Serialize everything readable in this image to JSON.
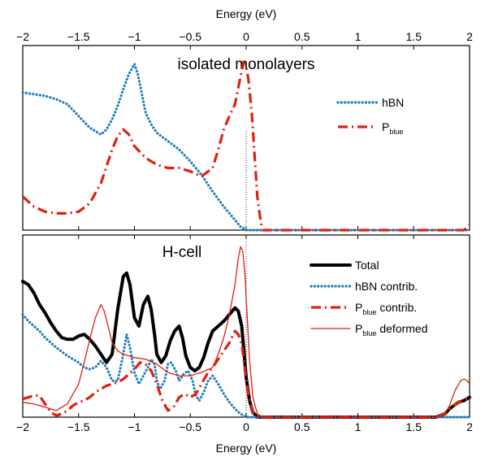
{
  "chart_data": [
    {
      "type": "line",
      "title": "isolated monolayers",
      "xlabel": "Energy (eV)",
      "ylabel": "",
      "xlim": [
        -2,
        2
      ],
      "ylim": [
        0,
        1.1
      ],
      "xticks": [
        "-2",
        "-1.5",
        "-1",
        "-0.5",
        "0",
        "0.5",
        "1",
        "1.5",
        "2"
      ],
      "fermi_level": 0,
      "legend_position": "top-right",
      "series": [
        {
          "name": "hBN",
          "subscript": "",
          "color": "#1f7fbf",
          "style": "dotted",
          "x": [
            -2.0,
            -1.9,
            -1.8,
            -1.7,
            -1.6,
            -1.5,
            -1.4,
            -1.3,
            -1.25,
            -1.2,
            -1.15,
            -1.1,
            -1.05,
            -1.0,
            -0.97,
            -0.93,
            -0.9,
            -0.85,
            -0.8,
            -0.7,
            -0.6,
            -0.5,
            -0.4,
            -0.3,
            -0.2,
            -0.1,
            -0.05,
            0.0,
            0.05,
            0.1,
            0.5,
            1.0,
            1.5,
            2.0
          ],
          "y": [
            0.82,
            0.81,
            0.8,
            0.78,
            0.75,
            0.68,
            0.61,
            0.57,
            0.6,
            0.66,
            0.74,
            0.84,
            0.93,
            0.99,
            0.93,
            0.8,
            0.7,
            0.63,
            0.58,
            0.53,
            0.48,
            0.41,
            0.33,
            0.23,
            0.14,
            0.06,
            0.02,
            0.0,
            0.0,
            0.0,
            0.0,
            0.0,
            0.0,
            0.0
          ]
        },
        {
          "name": "P",
          "subscript": "blue",
          "color": "#e02010",
          "style": "dashdot",
          "x": [
            -2.0,
            -1.9,
            -1.8,
            -1.7,
            -1.6,
            -1.5,
            -1.4,
            -1.3,
            -1.25,
            -1.2,
            -1.15,
            -1.1,
            -1.05,
            -1.0,
            -0.9,
            -0.8,
            -0.7,
            -0.6,
            -0.5,
            -0.4,
            -0.3,
            -0.25,
            -0.2,
            -0.15,
            -0.1,
            -0.07,
            -0.04,
            -0.02,
            0.0,
            0.02,
            0.05,
            0.08,
            0.1,
            0.13,
            0.15,
            0.2,
            0.5,
            1.0,
            1.5,
            1.95,
            2.0
          ],
          "y": [
            0.2,
            0.14,
            0.11,
            0.1,
            0.1,
            0.11,
            0.16,
            0.28,
            0.38,
            0.48,
            0.56,
            0.6,
            0.57,
            0.5,
            0.43,
            0.39,
            0.37,
            0.37,
            0.35,
            0.32,
            0.37,
            0.48,
            0.6,
            0.68,
            0.75,
            0.85,
            0.95,
            1.0,
            0.98,
            0.9,
            0.7,
            0.4,
            0.2,
            0.05,
            0.0,
            0.0,
            0.0,
            0.0,
            0.0,
            0.0,
            0.03
          ]
        }
      ]
    },
    {
      "type": "line",
      "title": "H-cell",
      "xlabel": "Energy (eV)",
      "ylabel": "",
      "xlim": [
        -2,
        2
      ],
      "ylim": [
        0,
        1.1
      ],
      "xticks": [
        "-2",
        "-1.5",
        "-1",
        "-0.5",
        "0",
        "0.5",
        "1",
        "1.5",
        "2"
      ],
      "fermi_level": 0,
      "legend_position": "top-right",
      "series": [
        {
          "name": "Total",
          "subscript": "",
          "suffix": "",
          "color": "#000000",
          "style": "solid-thick",
          "x": [
            -2.0,
            -1.95,
            -1.9,
            -1.85,
            -1.8,
            -1.75,
            -1.7,
            -1.65,
            -1.6,
            -1.55,
            -1.5,
            -1.45,
            -1.4,
            -1.35,
            -1.3,
            -1.25,
            -1.2,
            -1.15,
            -1.1,
            -1.07,
            -1.04,
            -1.0,
            -0.96,
            -0.92,
            -0.88,
            -0.85,
            -0.82,
            -0.8,
            -0.76,
            -0.72,
            -0.68,
            -0.64,
            -0.6,
            -0.57,
            -0.54,
            -0.5,
            -0.46,
            -0.42,
            -0.38,
            -0.34,
            -0.3,
            -0.25,
            -0.2,
            -0.15,
            -0.1,
            -0.07,
            -0.04,
            -0.02,
            0.0,
            0.03,
            0.06,
            0.1,
            0.15,
            0.3,
            0.6,
            1.0,
            1.4,
            1.6,
            1.7,
            1.78,
            1.82,
            1.9,
            1.95,
            2.0
          ],
          "y": [
            0.82,
            0.8,
            0.75,
            0.68,
            0.63,
            0.57,
            0.52,
            0.48,
            0.47,
            0.47,
            0.49,
            0.5,
            0.47,
            0.43,
            0.38,
            0.33,
            0.38,
            0.65,
            0.85,
            0.87,
            0.8,
            0.6,
            0.55,
            0.68,
            0.73,
            0.65,
            0.5,
            0.38,
            0.33,
            0.37,
            0.46,
            0.52,
            0.55,
            0.48,
            0.37,
            0.3,
            0.28,
            0.3,
            0.36,
            0.45,
            0.52,
            0.55,
            0.58,
            0.62,
            0.66,
            0.64,
            0.55,
            0.4,
            0.24,
            0.1,
            0.03,
            0.0,
            0.0,
            0.0,
            0.0,
            0.0,
            0.0,
            0.0,
            0.0,
            0.02,
            0.05,
            0.09,
            0.1,
            0.12
          ]
        },
        {
          "name": "hBN",
          "subscript": "",
          "suffix": "contrib.",
          "color": "#1f7fbf",
          "style": "dotted",
          "x": [
            -2.0,
            -1.95,
            -1.9,
            -1.85,
            -1.8,
            -1.7,
            -1.6,
            -1.5,
            -1.45,
            -1.4,
            -1.35,
            -1.3,
            -1.25,
            -1.2,
            -1.15,
            -1.1,
            -1.07,
            -1.04,
            -1.0,
            -0.96,
            -0.92,
            -0.88,
            -0.85,
            -0.82,
            -0.8,
            -0.77,
            -0.73,
            -0.7,
            -0.67,
            -0.63,
            -0.6,
            -0.56,
            -0.52,
            -0.48,
            -0.45,
            -0.42,
            -0.38,
            -0.34,
            -0.3,
            -0.25,
            -0.2,
            -0.15,
            -0.1,
            -0.05,
            0.0,
            0.05,
            0.1,
            0.5,
            1.0,
            1.5,
            2.0
          ],
          "y": [
            0.62,
            0.58,
            0.55,
            0.52,
            0.48,
            0.42,
            0.37,
            0.33,
            0.3,
            0.29,
            0.3,
            0.34,
            0.3,
            0.22,
            0.22,
            0.38,
            0.5,
            0.42,
            0.27,
            0.2,
            0.25,
            0.3,
            0.35,
            0.32,
            0.22,
            0.17,
            0.22,
            0.32,
            0.33,
            0.28,
            0.22,
            0.26,
            0.28,
            0.22,
            0.13,
            0.1,
            0.15,
            0.22,
            0.25,
            0.2,
            0.14,
            0.09,
            0.05,
            0.02,
            0.0,
            0.0,
            0.0,
            0.0,
            0.0,
            0.0,
            0.0
          ]
        },
        {
          "name": "P",
          "subscript": "blue",
          "suffix": "contrib.",
          "color": "#e02010",
          "style": "dashdot",
          "x": [
            -2.0,
            -1.95,
            -1.9,
            -1.85,
            -1.8,
            -1.75,
            -1.7,
            -1.65,
            -1.6,
            -1.55,
            -1.5,
            -1.45,
            -1.4,
            -1.35,
            -1.3,
            -1.25,
            -1.2,
            -1.15,
            -1.1,
            -1.05,
            -1.0,
            -0.95,
            -0.9,
            -0.85,
            -0.8,
            -0.75,
            -0.7,
            -0.65,
            -0.6,
            -0.55,
            -0.5,
            -0.45,
            -0.4,
            -0.35,
            -0.3,
            -0.25,
            -0.2,
            -0.15,
            -0.1,
            -0.07,
            -0.04,
            -0.02,
            0.0,
            0.03,
            0.06,
            0.1,
            0.15,
            0.3,
            0.6,
            1.0,
            1.4,
            1.6,
            1.7,
            1.78,
            1.82,
            1.9,
            1.95,
            2.0
          ],
          "y": [
            0.11,
            0.12,
            0.13,
            0.13,
            0.08,
            0.03,
            0.01,
            0.02,
            0.04,
            0.07,
            0.09,
            0.1,
            0.12,
            0.15,
            0.17,
            0.19,
            0.2,
            0.21,
            0.23,
            0.26,
            0.29,
            0.33,
            0.32,
            0.28,
            0.2,
            0.1,
            0.04,
            0.06,
            0.12,
            0.14,
            0.12,
            0.14,
            0.2,
            0.26,
            0.3,
            0.35,
            0.4,
            0.45,
            0.52,
            0.5,
            0.44,
            0.34,
            0.22,
            0.1,
            0.03,
            0.0,
            0.0,
            0.0,
            0.0,
            0.0,
            0.0,
            0.0,
            0.0,
            0.02,
            0.05,
            0.09,
            0.1,
            0.12
          ]
        },
        {
          "name": "P",
          "subscript": "blue",
          "suffix": "deformed",
          "color": "#e02010",
          "style": "solid-thin",
          "x": [
            -2.0,
            -1.9,
            -1.8,
            -1.7,
            -1.6,
            -1.5,
            -1.45,
            -1.4,
            -1.35,
            -1.3,
            -1.27,
            -1.24,
            -1.2,
            -1.15,
            -1.1,
            -1.0,
            -0.9,
            -0.8,
            -0.7,
            -0.6,
            -0.5,
            -0.4,
            -0.3,
            -0.25,
            -0.2,
            -0.15,
            -0.1,
            -0.07,
            -0.05,
            -0.03,
            -0.01,
            0.01,
            0.03,
            0.06,
            0.1,
            0.15,
            0.3,
            0.6,
            1.0,
            1.4,
            1.6,
            1.7,
            1.78,
            1.82,
            1.87,
            1.92,
            1.95,
            1.98,
            2.0
          ],
          "y": [
            0.09,
            0.08,
            0.06,
            0.04,
            0.08,
            0.2,
            0.33,
            0.47,
            0.6,
            0.68,
            0.64,
            0.56,
            0.45,
            0.4,
            0.38,
            0.36,
            0.35,
            0.32,
            0.27,
            0.25,
            0.25,
            0.27,
            0.3,
            0.38,
            0.48,
            0.62,
            0.8,
            0.96,
            1.03,
            1.0,
            0.85,
            0.6,
            0.35,
            0.12,
            0.02,
            0.0,
            0.0,
            0.0,
            0.0,
            0.0,
            0.0,
            0.0,
            0.02,
            0.07,
            0.16,
            0.22,
            0.23,
            0.22,
            0.2
          ]
        }
      ]
    }
  ]
}
